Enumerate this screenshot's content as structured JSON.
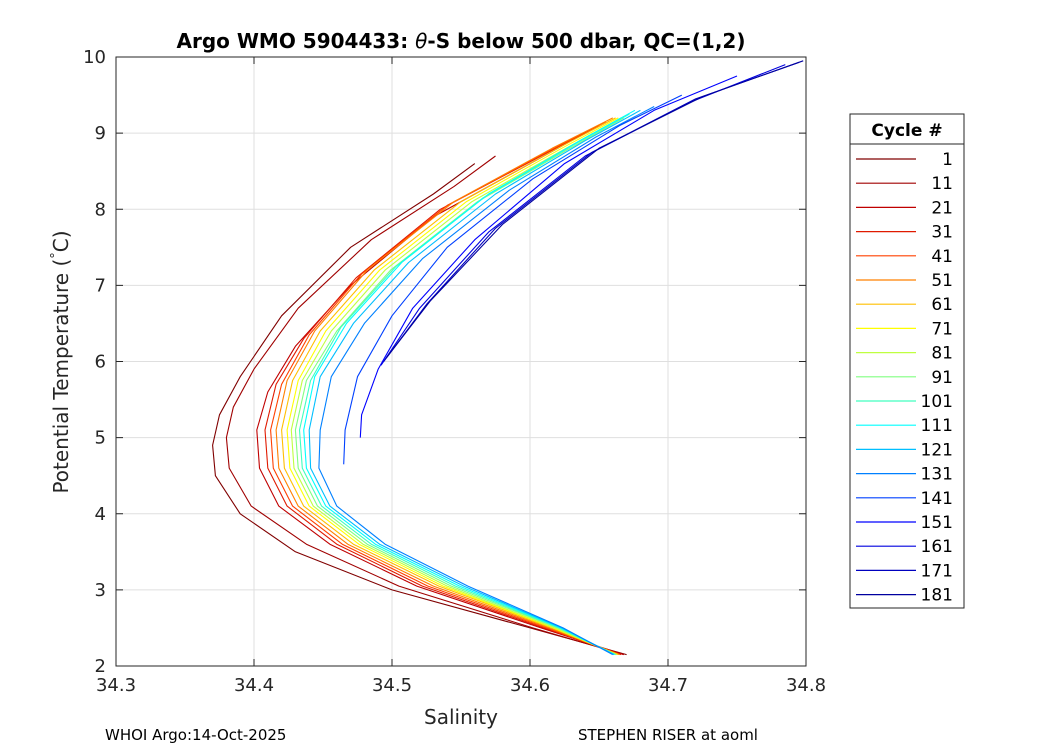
{
  "chart_data": {
    "type": "line",
    "title": "Argo WMO 5904433: θ-S below 500 dbar,  QC=(1,2)",
    "title_parts": {
      "prefix": "Argo WMO 5904433: ",
      "theta": "θ",
      "suffix": "-S below 500 dbar,  QC=(1,2)"
    },
    "xlabel": "Salinity",
    "ylabel": "Potential Temperature (°C)",
    "ylabel_parts": {
      "main": "Potential Temperature (",
      "degree": "°",
      "unit": "C)"
    },
    "xlim": [
      34.3,
      34.8
    ],
    "ylim": [
      2,
      10
    ],
    "xticks": [
      34.3,
      34.4,
      34.5,
      34.6,
      34.7,
      34.8
    ],
    "xtick_labels": [
      "34.3",
      "34.4",
      "34.5",
      "34.6",
      "34.7",
      "34.8"
    ],
    "yticks": [
      2,
      3,
      4,
      5,
      6,
      7,
      8,
      9,
      10
    ],
    "ytick_labels": [
      "2",
      "3",
      "4",
      "5",
      "6",
      "7",
      "8",
      "9",
      "10"
    ],
    "grid": true,
    "legend": {
      "title": "Cycle #",
      "placement": "outside-right",
      "entries": [
        {
          "label": "1",
          "color": "#800000"
        },
        {
          "label": "11",
          "color": "#a00000"
        },
        {
          "label": "21",
          "color": "#c00000"
        },
        {
          "label": "31",
          "color": "#e01a00"
        },
        {
          "label": "41",
          "color": "#ff4000"
        },
        {
          "label": "51",
          "color": "#ff8000"
        },
        {
          "label": "61",
          "color": "#ffbf00"
        },
        {
          "label": "71",
          "color": "#ffff00"
        },
        {
          "label": "81",
          "color": "#bfff40"
        },
        {
          "label": "91",
          "color": "#80ff80"
        },
        {
          "label": "101",
          "color": "#40ffbf"
        },
        {
          "label": "111",
          "color": "#00ffff"
        },
        {
          "label": "121",
          "color": "#00bfff"
        },
        {
          "label": "131",
          "color": "#0080ff"
        },
        {
          "label": "141",
          "color": "#0040ff"
        },
        {
          "label": "151",
          "color": "#0000ff"
        },
        {
          "label": "161",
          "color": "#0000df"
        },
        {
          "label": "171",
          "color": "#0000bf"
        },
        {
          "label": "181",
          "color": "#00009f"
        }
      ]
    },
    "series": [
      {
        "name": "1",
        "color": "#800000",
        "x": [
          34.56,
          34.53,
          34.47,
          34.42,
          34.39,
          34.375,
          34.37,
          34.372,
          34.39,
          34.43,
          34.5,
          34.6,
          34.67
        ],
        "y": [
          8.6,
          8.2,
          7.5,
          6.6,
          5.8,
          5.3,
          4.9,
          4.5,
          4.0,
          3.5,
          3.0,
          2.5,
          2.15
        ]
      },
      {
        "name": "11",
        "color": "#a00000",
        "x": [
          34.575,
          34.545,
          34.485,
          34.432,
          34.4,
          34.385,
          34.38,
          34.382,
          34.398,
          34.438,
          34.505,
          34.602,
          34.668
        ],
        "y": [
          8.7,
          8.3,
          7.6,
          6.7,
          5.9,
          5.4,
          5.0,
          4.6,
          4.1,
          3.6,
          3.05,
          2.5,
          2.15
        ]
      },
      {
        "name": "21",
        "color": "#c00000",
        "x": [
          34.64,
          34.6,
          34.53,
          34.47,
          34.43,
          34.41,
          34.402,
          34.404,
          34.418,
          34.455,
          34.518,
          34.608,
          34.668
        ],
        "y": [
          9.0,
          8.6,
          7.9,
          7.0,
          6.2,
          5.6,
          5.1,
          4.6,
          4.1,
          3.6,
          3.05,
          2.5,
          2.15
        ]
      },
      {
        "name": "31",
        "color": "#e01a00",
        "x": [
          34.65,
          34.608,
          34.535,
          34.474,
          34.436,
          34.416,
          34.408,
          34.41,
          34.424,
          34.46,
          34.522,
          34.61,
          34.666
        ],
        "y": [
          9.1,
          8.7,
          8.0,
          7.1,
          6.3,
          5.7,
          5.1,
          4.6,
          4.1,
          3.6,
          3.05,
          2.5,
          2.15
        ]
      },
      {
        "name": "41",
        "color": "#ff4000",
        "x": [
          34.655,
          34.612,
          34.54,
          34.478,
          34.44,
          34.42,
          34.412,
          34.414,
          34.428,
          34.464,
          34.526,
          34.612,
          34.665
        ],
        "y": [
          9.15,
          8.75,
          8.05,
          7.15,
          6.35,
          5.7,
          5.1,
          4.6,
          4.1,
          3.6,
          3.05,
          2.5,
          2.15
        ]
      },
      {
        "name": "51",
        "color": "#ff8000",
        "x": [
          34.66,
          34.616,
          34.545,
          34.482,
          34.444,
          34.424,
          34.416,
          34.418,
          34.432,
          34.468,
          34.53,
          34.614,
          34.665
        ],
        "y": [
          9.2,
          8.8,
          8.1,
          7.2,
          6.4,
          5.75,
          5.1,
          4.6,
          4.1,
          3.6,
          3.05,
          2.5,
          2.15
        ]
      },
      {
        "name": "61",
        "color": "#ffbf00",
        "x": [
          34.662,
          34.62,
          34.55,
          34.487,
          34.448,
          34.428,
          34.42,
          34.422,
          34.436,
          34.472,
          34.534,
          34.616,
          34.664
        ],
        "y": [
          9.2,
          8.8,
          8.1,
          7.2,
          6.4,
          5.75,
          5.1,
          4.6,
          4.1,
          3.6,
          3.05,
          2.5,
          2.15
        ]
      },
      {
        "name": "71",
        "color": "#ffff00",
        "x": [
          34.664,
          34.623,
          34.554,
          34.491,
          34.452,
          34.432,
          34.424,
          34.426,
          34.44,
          34.476,
          34.537,
          34.617,
          34.663
        ],
        "y": [
          9.2,
          8.8,
          8.1,
          7.2,
          6.4,
          5.75,
          5.1,
          4.6,
          4.1,
          3.6,
          3.05,
          2.5,
          2.15
        ]
      },
      {
        "name": "81",
        "color": "#bfff40",
        "x": [
          34.666,
          34.626,
          34.558,
          34.495,
          34.456,
          34.435,
          34.427,
          34.429,
          34.443,
          34.479,
          34.54,
          34.618,
          34.663
        ],
        "y": [
          9.2,
          8.8,
          8.1,
          7.2,
          6.4,
          5.75,
          5.1,
          4.6,
          4.1,
          3.6,
          3.05,
          2.5,
          2.15
        ]
      },
      {
        "name": "91",
        "color": "#80ff80",
        "x": [
          34.668,
          34.629,
          34.562,
          34.499,
          34.46,
          34.438,
          34.43,
          34.432,
          34.446,
          34.482,
          34.543,
          34.62,
          34.662
        ],
        "y": [
          9.2,
          8.8,
          8.1,
          7.2,
          6.4,
          5.75,
          5.1,
          4.6,
          4.1,
          3.6,
          3.05,
          2.5,
          2.15
        ]
      },
      {
        "name": "101",
        "color": "#40ffbf",
        "x": [
          34.672,
          34.632,
          34.566,
          34.503,
          34.463,
          34.441,
          34.433,
          34.435,
          34.449,
          34.485,
          34.546,
          34.621,
          34.662
        ],
        "y": [
          9.25,
          8.85,
          8.15,
          7.25,
          6.45,
          5.75,
          5.1,
          4.6,
          4.1,
          3.6,
          3.05,
          2.5,
          2.15
        ]
      },
      {
        "name": "111",
        "color": "#00ffff",
        "x": [
          34.676,
          34.636,
          34.57,
          34.507,
          34.467,
          34.444,
          34.436,
          34.438,
          34.452,
          34.488,
          34.549,
          34.622,
          34.661
        ],
        "y": [
          9.3,
          8.9,
          8.2,
          7.3,
          6.5,
          5.8,
          5.1,
          4.6,
          4.1,
          3.6,
          3.05,
          2.5,
          2.15
        ]
      },
      {
        "name": "121",
        "color": "#00bfff",
        "x": [
          34.68,
          34.64,
          34.575,
          34.512,
          34.472,
          34.448,
          34.44,
          34.441,
          34.455,
          34.491,
          34.552,
          34.623,
          34.661
        ],
        "y": [
          9.3,
          8.9,
          8.2,
          7.3,
          6.5,
          5.8,
          5.1,
          4.6,
          4.1,
          3.6,
          3.05,
          2.5,
          2.15
        ]
      },
      {
        "name": "131",
        "color": "#0080ff",
        "x": [
          34.69,
          34.648,
          34.585,
          34.522,
          34.48,
          34.456,
          34.448,
          34.447,
          34.46,
          34.495,
          34.555,
          34.624,
          34.66
        ],
        "y": [
          9.35,
          8.95,
          8.25,
          7.35,
          6.5,
          5.8,
          5.1,
          4.6,
          4.1,
          3.6,
          3.05,
          2.5,
          2.15
        ]
      },
      {
        "name": "141",
        "color": "#0040ff",
        "x": [
          34.71,
          34.665,
          34.602,
          34.54,
          34.5,
          34.475,
          34.466,
          34.465
        ],
        "y": [
          9.5,
          9.1,
          8.4,
          7.5,
          6.6,
          5.8,
          5.1,
          4.65
        ]
      },
      {
        "name": "151",
        "color": "#0000ff",
        "x": [
          34.75,
          34.69,
          34.625,
          34.56,
          34.515,
          34.49,
          34.478,
          34.477
        ],
        "y": [
          9.75,
          9.3,
          8.6,
          7.6,
          6.7,
          5.9,
          5.3,
          5.0
        ]
      },
      {
        "name": "161",
        "color": "#0000df",
        "x": [
          34.785,
          34.715,
          34.64,
          34.57,
          34.52,
          34.492
        ],
        "y": [
          9.9,
          9.4,
          8.7,
          7.7,
          6.7,
          5.95
        ]
      },
      {
        "name": "171",
        "color": "#0000bf",
        "x": [
          34.795,
          34.72,
          34.645,
          34.575,
          34.525,
          34.494
        ],
        "y": [
          9.93,
          9.45,
          8.75,
          7.75,
          6.75,
          6.0
        ]
      },
      {
        "name": "181",
        "color": "#00009f",
        "x": [
          34.798,
          34.725,
          34.65,
          34.58,
          34.528,
          34.496
        ],
        "y": [
          9.95,
          9.48,
          8.8,
          7.8,
          6.8,
          6.05
        ]
      }
    ]
  },
  "footer": {
    "left": "WHOI Argo:14-Oct-2025",
    "right": "STEPHEN RISER at aoml"
  }
}
